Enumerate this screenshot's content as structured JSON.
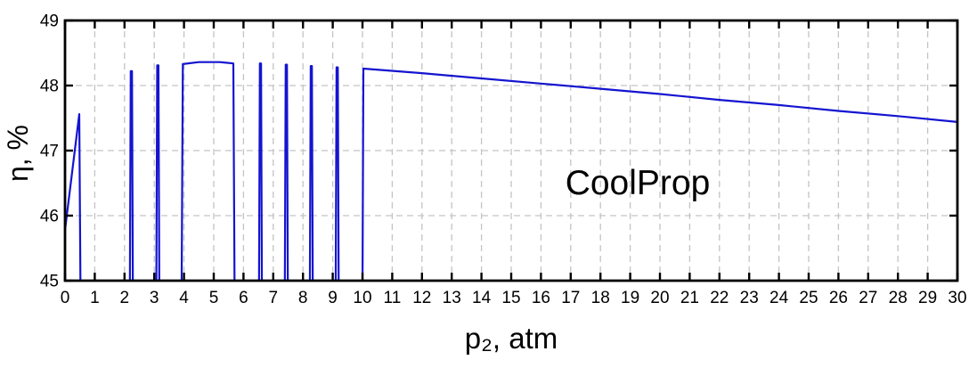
{
  "chart_data": {
    "type": "line",
    "title": "",
    "xlabel": "p₂, atm",
    "ylabel": "η, %",
    "xlim": [
      0,
      30
    ],
    "ylim": [
      45,
      49
    ],
    "grid": "dashed light-gray, every 1 unit on both axes, ticks inward on all four box sides",
    "legend": "none",
    "background": "#ffffff",
    "annotation": {
      "text": "CoolProp",
      "x": 19.3,
      "y": 46.5
    },
    "x_ticks": [
      0,
      1,
      2,
      3,
      4,
      5,
      6,
      7,
      8,
      9,
      10,
      11,
      12,
      13,
      14,
      15,
      16,
      17,
      18,
      19,
      20,
      21,
      22,
      23,
      24,
      25,
      26,
      27,
      28,
      29,
      30
    ],
    "x_tick_labels": [
      "0",
      "1",
      "2",
      "3",
      "4",
      "5",
      "6",
      "7",
      "8",
      "9",
      "10",
      "11",
      "12",
      "13",
      "14",
      "15",
      "16",
      "17",
      "18",
      "19",
      "20",
      "21",
      "22",
      "23",
      "24",
      "25",
      "26",
      "27",
      "28",
      "29",
      "30"
    ],
    "y_ticks": [
      45,
      46,
      47,
      48,
      49
    ],
    "y_tick_labels": [
      "45",
      "46",
      "47",
      "48",
      "49"
    ],
    "clipped_at_ymin": true,
    "series": [
      {
        "name": "efficiency-curve",
        "color": "#1414d0",
        "line_width": 2.2,
        "segments": [
          [
            [
              0,
              45.78
            ],
            [
              0.48,
              47.56
            ],
            [
              0.52,
              44.8
            ]
          ],
          [
            [
              2.18,
              44.8
            ],
            [
              2.21,
              48.22
            ],
            [
              2.25,
              48.22
            ],
            [
              2.28,
              44.8
            ]
          ],
          [
            [
              3.07,
              44.8
            ],
            [
              3.1,
              48.31
            ],
            [
              3.14,
              48.31
            ],
            [
              3.17,
              44.8
            ]
          ],
          [
            [
              3.92,
              44.8
            ],
            [
              3.96,
              48.33
            ],
            [
              4.5,
              48.36
            ],
            [
              5.2,
              48.36
            ],
            [
              5.66,
              48.34
            ],
            [
              5.7,
              44.8
            ]
          ],
          [
            [
              6.52,
              44.8
            ],
            [
              6.55,
              48.34
            ],
            [
              6.59,
              48.34
            ],
            [
              6.62,
              44.8
            ]
          ],
          [
            [
              7.39,
              44.8
            ],
            [
              7.42,
              48.32
            ],
            [
              7.46,
              48.32
            ],
            [
              7.49,
              44.8
            ]
          ],
          [
            [
              8.23,
              44.8
            ],
            [
              8.26,
              48.3
            ],
            [
              8.3,
              48.3
            ],
            [
              8.33,
              44.8
            ]
          ],
          [
            [
              9.1,
              44.8
            ],
            [
              9.13,
              48.28
            ],
            [
              9.17,
              48.28
            ],
            [
              9.2,
              44.8
            ]
          ],
          [
            [
              10.0,
              44.8
            ],
            [
              10.03,
              48.26
            ],
            [
              12,
              48.19
            ],
            [
              14,
              48.11
            ],
            [
              16,
              48.03
            ],
            [
              18,
              47.95
            ],
            [
              20,
              47.87
            ],
            [
              22,
              47.78
            ],
            [
              24,
              47.7
            ],
            [
              26,
              47.61
            ],
            [
              28,
              47.53
            ],
            [
              30,
              47.44
            ]
          ]
        ]
      }
    ]
  }
}
